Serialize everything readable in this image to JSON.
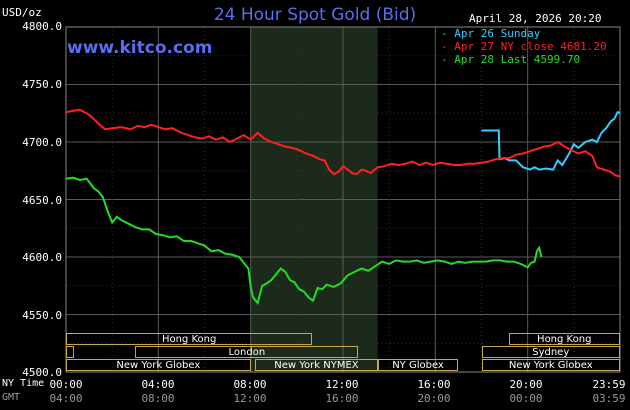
{
  "header": {
    "title": "24 Hour Spot Gold (Bid)",
    "y_unit": "USD/oz",
    "datetime": "April 28, 2026 20:20",
    "brand": "www.kitco.com"
  },
  "legend": [
    {
      "label": "Apr 26 Sunday",
      "color": "#33ccff"
    },
    {
      "label": "Apr 27 NY close 4681.20",
      "color": "#ff2020"
    },
    {
      "label": "Apr 28 Last 4599.70",
      "color": "#22dd22"
    }
  ],
  "axis_side_labels": {
    "ny": "NY Time",
    "gmt": "GMT"
  },
  "sessions": [
    {
      "label": "Hong Kong",
      "row": 0,
      "start": 0.0,
      "end": 10.67
    },
    {
      "label": "London",
      "row": 1,
      "start": 3.0,
      "end": 12.67
    },
    {
      "label": "",
      "row": 1,
      "start": 0.0,
      "end": 0.33
    },
    {
      "label": "New York Globex",
      "row": 2,
      "start": 0.0,
      "end": 8.0
    },
    {
      "label": "New York NYMEX",
      "row": 2,
      "start": 8.2,
      "end": 13.5
    },
    {
      "label": "NY Globex",
      "row": 2,
      "start": 13.5,
      "end": 17.0
    },
    {
      "label": "Hong Kong",
      "row": 0,
      "start": 19.17,
      "end": 24.0
    },
    {
      "label": "Sydney",
      "row": 1,
      "start": 18.0,
      "end": 24.0
    },
    {
      "label": "New York Globex",
      "row": 2,
      "start": 18.0,
      "end": 24.0
    }
  ],
  "chart_data": {
    "type": "line",
    "title": "24 Hour Spot Gold (Bid)",
    "ylabel": "USD/oz",
    "ylim": [
      4500,
      4800
    ],
    "yticks": [
      "4800.0",
      "4750.0",
      "4700.0",
      "4650.0",
      "4600.0",
      "4550.0",
      "4500.0"
    ],
    "xlim": [
      0,
      24
    ],
    "xticks_ny": [
      "00:00",
      "04:00",
      "08:00",
      "12:00",
      "16:00",
      "20:00",
      "23:59"
    ],
    "xticks_gmt": [
      "04:00",
      "08:00",
      "12:00",
      "16:00",
      "20:00",
      "00:00",
      "03:59"
    ],
    "grid": true,
    "highlight_range": [
      8.0,
      13.5
    ],
    "series": [
      {
        "name": "Apr 26 Sunday",
        "color": "#33ccff",
        "x": [
          18.0,
          18.75,
          18.78,
          19.0,
          19.2,
          19.5,
          19.8,
          20.1,
          20.3,
          20.5,
          20.8,
          21.1,
          21.3,
          21.5,
          21.8,
          22.0,
          22.2,
          22.5,
          22.8,
          23.0,
          23.2,
          23.4,
          23.6,
          23.75,
          23.9,
          24.0
        ],
        "y": [
          4710,
          4710,
          4685,
          4686,
          4684,
          4684,
          4678,
          4676,
          4678,
          4676,
          4677,
          4676,
          4684,
          4680,
          4690,
          4698,
          4695,
          4700,
          4702,
          4700,
          4708,
          4712,
          4718,
          4720,
          4726,
          4725
        ]
      },
      {
        "name": "Apr 27 NY close 4681.20",
        "color": "#ff2020",
        "x": [
          0.0,
          0.3,
          0.6,
          0.9,
          1.1,
          1.4,
          1.7,
          2.0,
          2.4,
          2.8,
          3.1,
          3.4,
          3.7,
          4.0,
          4.3,
          4.6,
          5.0,
          5.3,
          5.6,
          5.9,
          6.2,
          6.5,
          6.8,
          7.1,
          7.4,
          7.7,
          8.0,
          8.3,
          8.6,
          8.9,
          9.2,
          9.5,
          9.8,
          10.1,
          10.4,
          10.7,
          11.0,
          11.2,
          11.4,
          11.6,
          11.8,
          12.0,
          12.2,
          12.4,
          12.6,
          12.8,
          13.0,
          13.2,
          13.5,
          13.8,
          14.1,
          14.4,
          14.7,
          15.0,
          15.3,
          15.6,
          15.9,
          16.2,
          16.5,
          16.8,
          17.1,
          17.4,
          17.7,
          18.0,
          18.3,
          18.6,
          18.9,
          19.2,
          19.5,
          19.8,
          20.1,
          20.4,
          20.7,
          21.0,
          21.3,
          21.6,
          21.9,
          22.2,
          22.5,
          22.8,
          23.0,
          23.3,
          23.6,
          23.8,
          24.0
        ],
        "y": [
          4726,
          4727,
          4728,
          4725,
          4722,
          4716,
          4711,
          4712,
          4713,
          4711,
          4714,
          4713,
          4715,
          4713,
          4711,
          4712,
          4708,
          4706,
          4704,
          4703,
          4705,
          4702,
          4704,
          4700,
          4703,
          4706,
          4702,
          4708,
          4703,
          4700,
          4698,
          4696,
          4695,
          4693,
          4690,
          4688,
          4685,
          4684,
          4676,
          4672,
          4674,
          4679,
          4676,
          4673,
          4672,
          4676,
          4675,
          4673,
          4678,
          4679,
          4681,
          4680,
          4681,
          4683,
          4680,
          4682,
          4680,
          4682,
          4681,
          4680,
          4680,
          4681,
          4681,
          4682,
          4683,
          4685,
          4686,
          4686,
          4689,
          4690,
          4692,
          4694,
          4696,
          4697,
          4700,
          4696,
          4693,
          4690,
          4692,
          4688,
          4678,
          4676,
          4674,
          4671,
          4670
        ]
      },
      {
        "name": "Apr 28 Last 4599.70",
        "color": "#22dd22",
        "x": [
          0.0,
          0.3,
          0.6,
          0.9,
          1.2,
          1.4,
          1.6,
          1.8,
          2.0,
          2.2,
          2.4,
          2.6,
          2.8,
          3.0,
          3.3,
          3.6,
          3.9,
          4.2,
          4.5,
          4.8,
          5.1,
          5.4,
          5.7,
          6.0,
          6.3,
          6.6,
          6.9,
          7.2,
          7.5,
          7.7,
          7.9,
          8.0,
          8.1,
          8.3,
          8.5,
          8.7,
          8.9,
          9.1,
          9.3,
          9.5,
          9.7,
          9.9,
          10.1,
          10.3,
          10.5,
          10.7,
          10.9,
          11.1,
          11.3,
          11.6,
          11.9,
          12.2,
          12.5,
          12.8,
          13.1,
          13.4,
          13.7,
          14.0,
          14.3,
          14.6,
          14.9,
          15.2,
          15.5,
          15.8,
          16.1,
          16.4,
          16.7,
          17.0,
          17.3,
          17.6,
          17.9,
          18.2,
          18.5,
          18.8,
          19.1,
          19.4,
          19.7,
          20.0,
          20.15,
          20.3,
          20.4,
          20.5,
          20.6
        ],
        "y": [
          4668,
          4669,
          4667,
          4668,
          4660,
          4657,
          4652,
          4640,
          4630,
          4635,
          4632,
          4630,
          4628,
          4626,
          4624,
          4624,
          4620,
          4619,
          4617,
          4618,
          4614,
          4614,
          4612,
          4610,
          4605,
          4606,
          4603,
          4602,
          4600,
          4595,
          4590,
          4574,
          4565,
          4560,
          4575,
          4577,
          4580,
          4585,
          4590,
          4587,
          4580,
          4578,
          4572,
          4570,
          4565,
          4562,
          4573,
          4572,
          4576,
          4574,
          4577,
          4584,
          4587,
          4590,
          4588,
          4592,
          4596,
          4594,
          4597,
          4596,
          4596,
          4597,
          4595,
          4596,
          4597,
          4596,
          4594,
          4596,
          4595,
          4596,
          4596,
          4596,
          4597,
          4597,
          4596,
          4596,
          4594,
          4591,
          4595,
          4596,
          4605,
          4608,
          4600
        ]
      }
    ]
  }
}
